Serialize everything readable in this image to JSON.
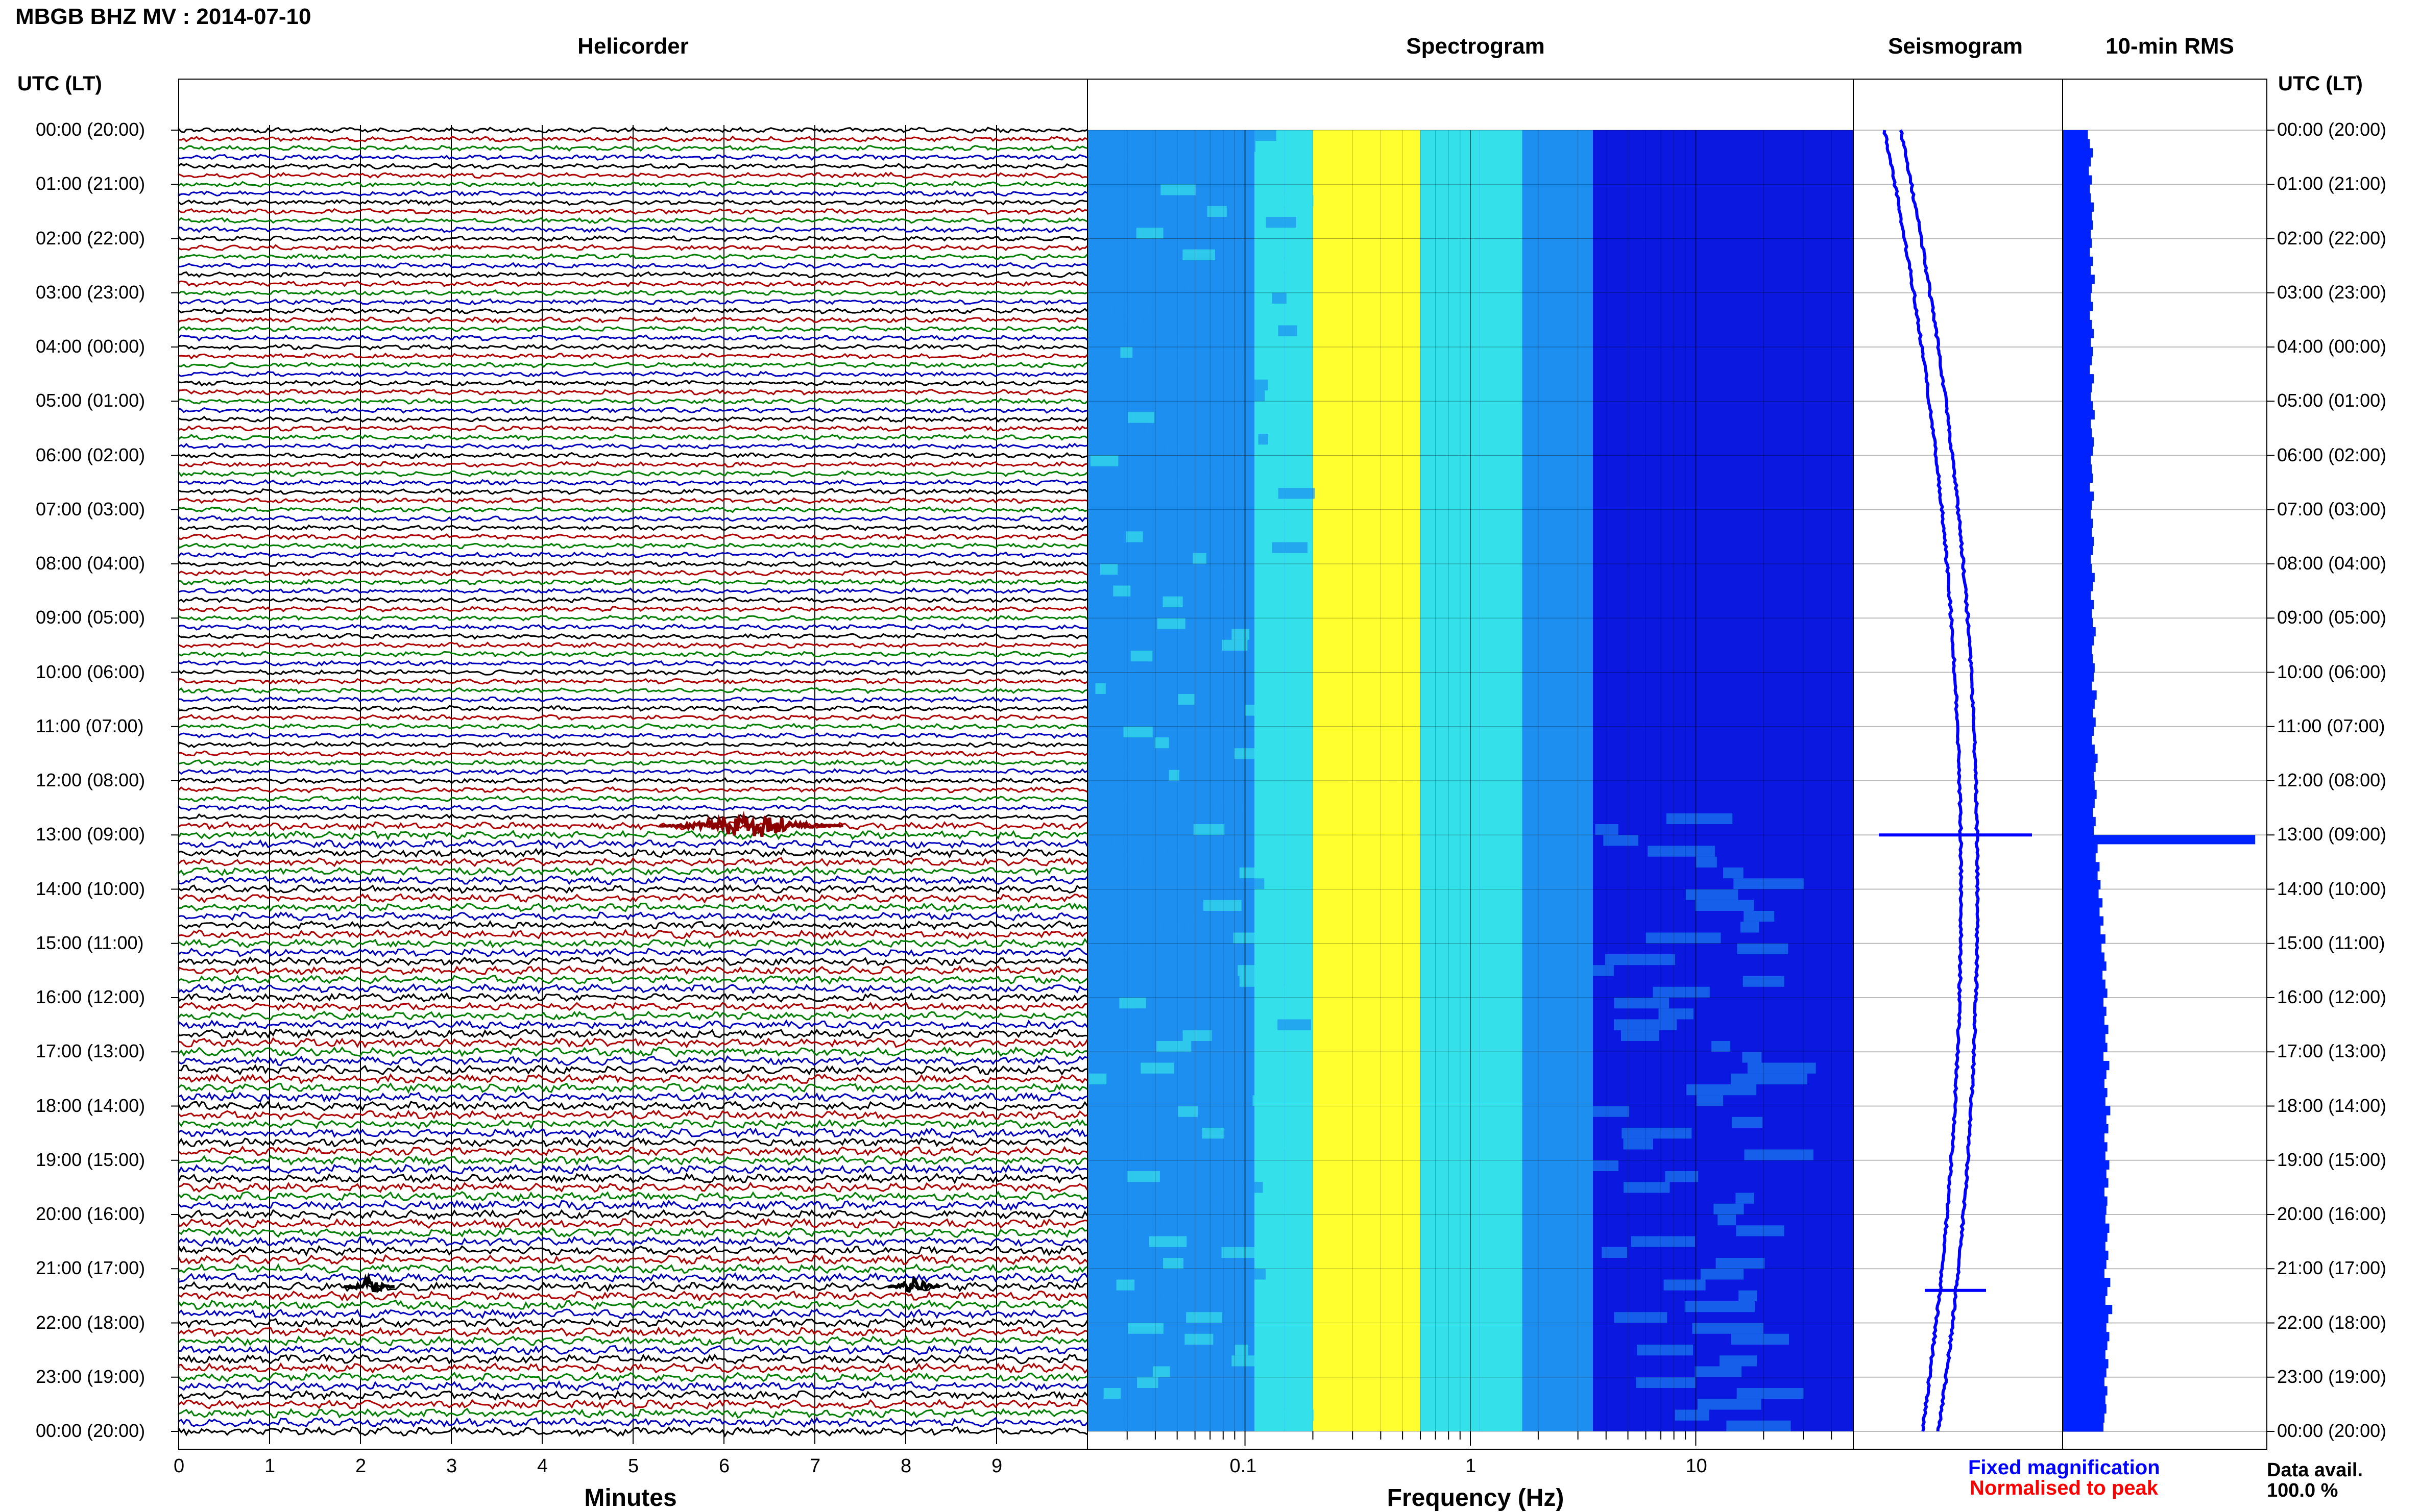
{
  "title": "MBGB BHZ MV : 2014-07-10",
  "utc_header_left": "UTC (LT)",
  "utc_header_right": "UTC (LT)",
  "panels": {
    "helicorder": "Helicorder",
    "spectrogram": "Spectrogram",
    "seismogram": "Seismogram",
    "rms": "10-min RMS"
  },
  "time_labels": [
    "00:00 (20:00)",
    "01:00 (21:00)",
    "02:00 (22:00)",
    "03:00 (23:00)",
    "04:00 (00:00)",
    "05:00 (01:00)",
    "06:00 (02:00)",
    "07:00 (03:00)",
    "08:00 (04:00)",
    "09:00 (05:00)",
    "10:00 (06:00)",
    "11:00 (07:00)",
    "12:00 (08:00)",
    "13:00 (09:00)",
    "14:00 (10:00)",
    "15:00 (11:00)",
    "16:00 (12:00)",
    "17:00 (13:00)",
    "18:00 (14:00)",
    "19:00 (15:00)",
    "20:00 (16:00)",
    "21:00 (17:00)",
    "22:00 (18:00)",
    "23:00 (19:00)",
    "00:00 (20:00)"
  ],
  "legend": {
    "fixed": "Fixed magnification",
    "normalised": "Normalised to peak",
    "fixed_color": "#0000ff",
    "normalised_color": "#ff0000"
  },
  "data_avail_label": "Data avail.",
  "data_avail_value": "100.0 %",
  "colors": {
    "trace_colors": [
      "#000000",
      "#b00000",
      "#008000",
      "#0000c0"
    ],
    "event_color": "#8b0000",
    "bar_color": "#0022ff"
  },
  "chart_data": [
    {
      "type": "line",
      "name": "helicorder",
      "xlabel": "Minutes",
      "x_ticks": [
        "0",
        "1",
        "2",
        "3",
        "4",
        "5",
        "6",
        "7",
        "8",
        "9"
      ],
      "xlim": [
        0,
        10
      ],
      "lines_per_hour": 6,
      "events": [
        {
          "hour": 12.83,
          "minute": 6.3
        },
        {
          "hour": 21.33,
          "minute": 2.1
        },
        {
          "hour": 21.33,
          "minute": 8.1
        }
      ]
    },
    {
      "type": "heatmap",
      "name": "spectrogram",
      "xlabel": "Frequency (Hz)",
      "x_ticks": [
        "0.1",
        "1",
        "10"
      ],
      "x_scale": "log",
      "xlim": [
        0.02,
        50
      ],
      "colormap": [
        "#0a18e0",
        "#1d8ff0",
        "#34e0ea",
        "#ffff30"
      ]
    },
    {
      "type": "line",
      "name": "seismogram",
      "spikes_hour": [
        13.0,
        21.4
      ]
    },
    {
      "type": "bar",
      "name": "10-min RMS",
      "values": [
        2.6,
        2.8,
        3.1,
        2.9,
        2.7,
        3.0,
        2.8,
        2.9,
        3.2,
        3.0,
        3.1,
        2.9,
        3.0,
        2.8,
        3.1,
        2.9,
        3.3,
        3.0,
        2.9,
        3.1,
        2.8,
        3.0,
        3.2,
        2.9,
        3.1,
        3.0,
        2.8,
        3.2,
        3.0,
        2.9,
        3.1,
        3.3,
        2.9,
        3.0,
        3.2,
        3.1,
        2.9,
        3.0,
        3.1,
        2.8,
        3.2,
        3.0,
        2.9,
        3.1,
        3.0,
        3.2,
        3.1,
        2.9,
        3.0,
        3.3,
        3.1,
        2.9,
        3.2,
        3.0,
        3.1,
        3.4,
        3.2,
        3.0,
        3.1,
        3.3,
        3.2,
        3.0,
        3.5,
        3.3,
        3.1,
        3.4,
        3.2,
        3.0,
        3.3,
        3.6,
        3.4,
        3.2,
        3.3,
        3.5,
        3.3,
        3.1,
        3.4,
        3.2,
        19.8,
        3.6,
        3.4,
        3.8,
        3.6,
        3.9,
        3.7,
        4.1,
        3.8,
        4.2,
        3.9,
        4.4,
        4.0,
        4.3,
        4.5,
        4.1,
        4.4,
        4.6,
        4.2,
        4.5,
        4.3,
        4.7,
        4.4,
        4.6,
        4.2,
        4.8,
        4.5,
        4.3,
        4.6,
        4.4,
        4.9,
        4.5,
        4.7,
        4.3,
        4.6,
        4.4,
        4.8,
        4.5,
        4.7,
        4.3,
        4.6,
        4.5,
        4.4,
        4.8,
        4.6,
        4.4,
        4.7,
        4.5,
        4.3,
        4.9,
        4.6,
        4.4,
        5.1,
        4.7,
        4.5,
        4.8,
        4.6,
        4.4,
        4.7,
        4.5,
        4.3,
        4.6,
        4.4,
        4.5,
        4.3,
        4.2
      ],
      "xlim": [
        0,
        21
      ]
    }
  ]
}
